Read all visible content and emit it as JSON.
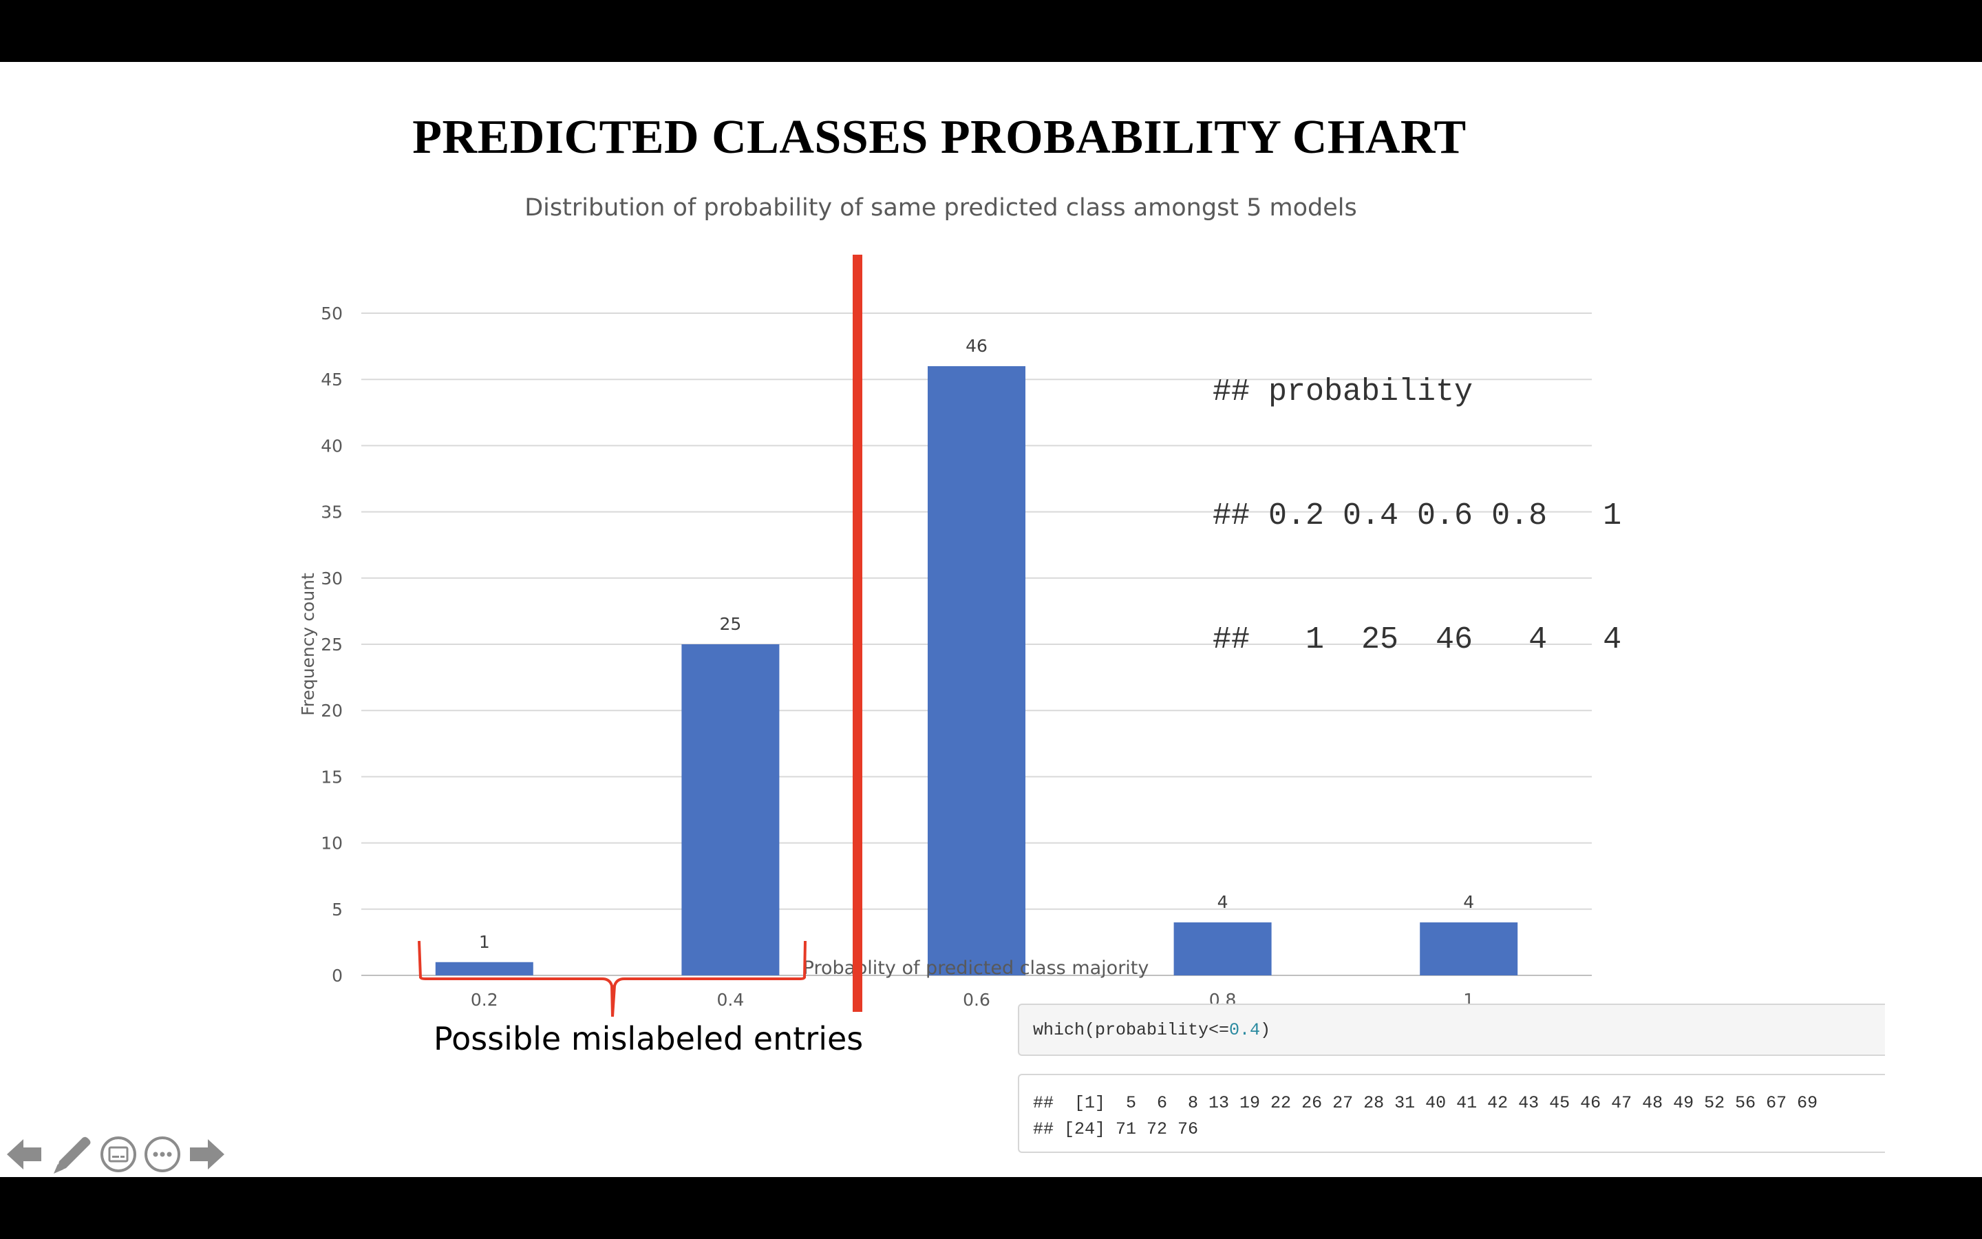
{
  "slide": {
    "title": "PREDICTED CLASSES PROBABILITY CHART"
  },
  "chart_data": {
    "type": "bar",
    "title": "Distribution of probability of same predicted class amongst 5 models",
    "xlabel": "Probablity of predicted class majority",
    "ylabel": "Frequency count",
    "categories": [
      "0.2",
      "0.4",
      "0.6",
      "0.8",
      "1"
    ],
    "values": [
      1,
      25,
      46,
      4,
      4
    ],
    "ylim": [
      0,
      50
    ],
    "yticks": [
      "0",
      "5",
      "10",
      "15",
      "20",
      "25",
      "30",
      "35",
      "40",
      "45",
      "50"
    ],
    "grid": true,
    "bar_color": "#4a72c0",
    "threshold_line_color": "#e63a26",
    "data_labels": true
  },
  "overlay": {
    "lines": [
      "## probability",
      "## 0.2 0.4 0.6 0.8   1",
      "##   1  25  46   4   4"
    ]
  },
  "annotation": {
    "label": "Possible mislabeled entries",
    "color": "#e63a26"
  },
  "code": {
    "input_prefix": "which(probability<=",
    "input_number": "0.4",
    "input_suffix": ")",
    "output_lines": [
      "##  [1]  5  6  8 13 19 22 26 27 28 31 40 41 42 43 45 46 47 48 49 52 56 67 69",
      "## [24] 71 72 76"
    ]
  },
  "nav": {
    "icons": [
      "arrow-left-icon",
      "pen-icon",
      "subtitles-icon",
      "more-icon",
      "arrow-right-icon"
    ],
    "icon_color": "#8c8c8c"
  }
}
